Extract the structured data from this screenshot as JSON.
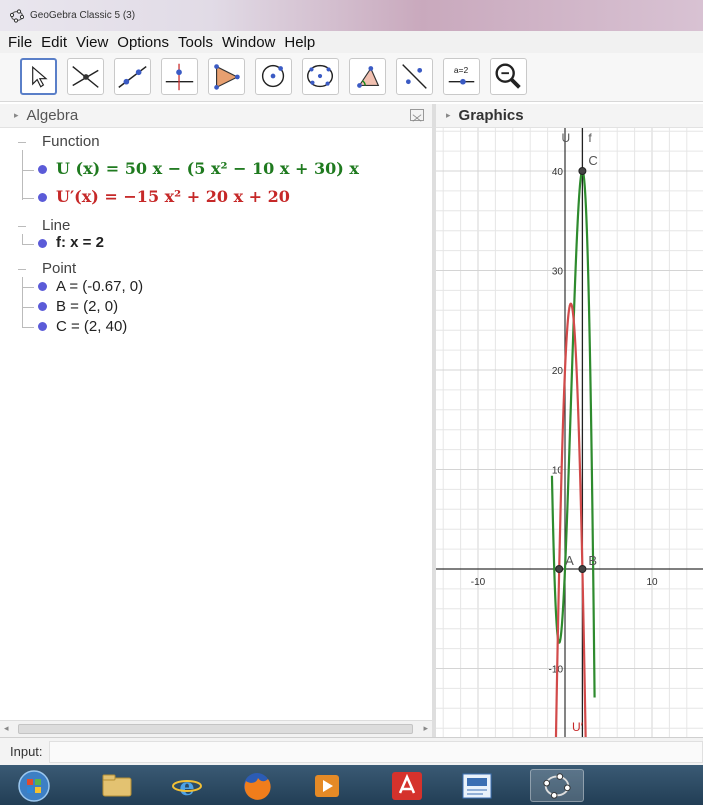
{
  "window": {
    "title": "GeoGebra Classic 5 (3)"
  },
  "menu": [
    "File",
    "Edit",
    "View",
    "Options",
    "Tools",
    "Window",
    "Help"
  ],
  "toolbar": {
    "tools": [
      "move-tool",
      "intersect-tool",
      "line-tool",
      "perpendicular-tool",
      "polygon-tool",
      "circle-tool",
      "conic-tool",
      "angle-tool",
      "reflect-tool",
      "slider-tool",
      "zoom-tool"
    ],
    "slider_label": "a=2"
  },
  "algebra": {
    "title": "Algebra",
    "categories": {
      "function": "Function",
      "line": "Line",
      "point": "Point"
    },
    "functions": [
      {
        "text": "U (x) = 50 x − (5 x² − 10 x + 30) x",
        "color": "#1f7a1f"
      },
      {
        "text": "U′(x) = −15 x² + 20 x + 20",
        "color": "#c62828"
      }
    ],
    "lines": [
      {
        "text": "f: x = 2"
      }
    ],
    "points": [
      {
        "text": "A = (-0.67, 0)"
      },
      {
        "text": "B = (2, 0)"
      },
      {
        "text": "C = (2, 40)"
      }
    ],
    "dot_color": "#5b5bd8"
  },
  "graphics": {
    "title": "Graphics",
    "x_ticks": [
      "-10",
      "10"
    ],
    "y_ticks": [
      "40",
      "30",
      "20",
      "10",
      "-10"
    ],
    "point_labels": {
      "A": "A",
      "B": "B",
      "C": "C"
    },
    "curve_labels": {
      "U": "U",
      "f": "f",
      "Uprime": "U′"
    },
    "colors": {
      "U": "#2e8b2e",
      "Uprime": "#d24a4a",
      "grid": "#e6e6e6",
      "axis": "#333333"
    }
  },
  "input": {
    "label": "Input:"
  },
  "taskbar": [
    "start",
    "file-explorer",
    "internet-explorer",
    "firefox",
    "media-player",
    "acrobat",
    "word-pad",
    "geogebra"
  ]
}
